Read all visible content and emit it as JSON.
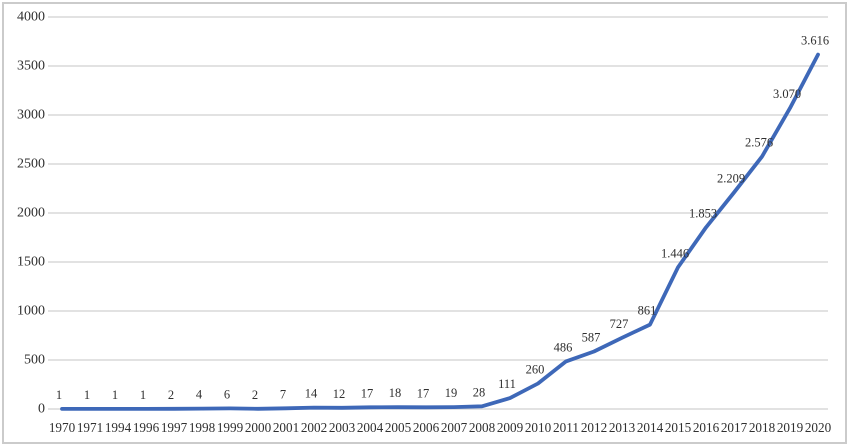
{
  "frame": {
    "background": "#FFFFFF",
    "border_color": "#CBCBCB"
  },
  "chart_data": {
    "type": "line",
    "title": "",
    "xlabel": "",
    "ylabel": "",
    "legend": "none",
    "grid": "horizontal",
    "ylim": [
      0,
      4000
    ],
    "ytick_values": [
      0,
      500,
      1000,
      1500,
      2000,
      2500,
      3000,
      3500,
      4000
    ],
    "ytick_labels": [
      "0",
      "500",
      "1000",
      "1500",
      "2000",
      "2500",
      "3000",
      "3500",
      "4000"
    ],
    "categories": [
      "1970",
      "1971",
      "1994",
      "1996",
      "1997",
      "1998",
      "1999",
      "2000",
      "2001",
      "2002",
      "2003",
      "2004",
      "2005",
      "2006",
      "2007",
      "2008",
      "2009",
      "2010",
      "2011",
      "2012",
      "2013",
      "2014",
      "2015",
      "2016",
      "2017",
      "2018",
      "2019",
      "2020"
    ],
    "values": [
      1,
      1,
      1,
      1,
      2,
      4,
      6,
      2,
      7,
      14,
      12,
      17,
      18,
      17,
      19,
      28,
      111,
      260,
      486,
      587,
      727,
      861,
      1446,
      1853,
      2209,
      2576,
      3070,
      3616
    ],
    "point_labels": [
      "1",
      "1",
      "1",
      "1",
      "2",
      "4",
      "6",
      "2",
      "7",
      "14",
      "12",
      "17",
      "18",
      "17",
      "19",
      "28",
      "111",
      "260",
      "486",
      "587",
      "727",
      "861",
      "1.446",
      "1.853",
      "2.209",
      "2.576",
      "3.070",
      "3.616"
    ],
    "line_color": "#3E68B8",
    "gridline_color": "#D9D9D9",
    "text_color": "#303030"
  }
}
